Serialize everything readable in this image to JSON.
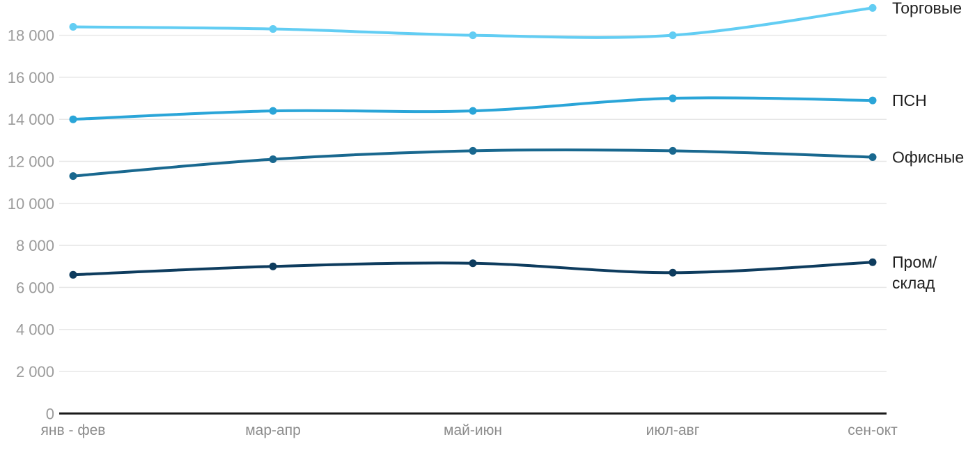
{
  "chart_data": {
    "type": "line",
    "title": "",
    "xlabel": "",
    "ylabel": "",
    "categories": [
      "янв - фев",
      "мар-апр",
      "май-июн",
      "июл-авг",
      "сен-окт"
    ],
    "series": [
      {
        "name": "Торговые",
        "label_lines": [
          "Торговые"
        ],
        "color": "#62cdf3",
        "values": [
          18400,
          18300,
          18000,
          18000,
          19300
        ]
      },
      {
        "name": "ПСН",
        "label_lines": [
          "ПСН"
        ],
        "color": "#2aa5d8",
        "values": [
          14000,
          14400,
          14400,
          15000,
          14900
        ]
      },
      {
        "name": "Офисные",
        "label_lines": [
          "Офисные"
        ],
        "color": "#19688f",
        "values": [
          11300,
          12100,
          12500,
          12500,
          12200
        ]
      },
      {
        "name": "Пром/склад",
        "label_lines": [
          "Пром/",
          "склад"
        ],
        "color": "#0e3c5e",
        "values": [
          6600,
          7000,
          7150,
          6700,
          7200
        ]
      }
    ],
    "y_axis": {
      "min": 0,
      "max": 18000,
      "tick_step": 2000,
      "ticks": [
        {
          "value": 0,
          "label": "0"
        },
        {
          "value": 2000,
          "label": "2 000"
        },
        {
          "value": 4000,
          "label": "4 000"
        },
        {
          "value": 6000,
          "label": "6 000"
        },
        {
          "value": 8000,
          "label": "8 000"
        },
        {
          "value": 10000,
          "label": "10 000"
        },
        {
          "value": 12000,
          "label": "12 000"
        },
        {
          "value": 14000,
          "label": "14 000"
        },
        {
          "value": 16000,
          "label": "16 000"
        },
        {
          "value": 18000,
          "label": "18 000"
        }
      ]
    },
    "grid": true,
    "legend_position": "right-of-line-ends",
    "line_style": "smooth",
    "markers": "circle"
  },
  "styles": {
    "background": "#ffffff",
    "grid_color": "#e7e7e7",
    "axis_color": "#1a1a1a",
    "y_tick_color": "#9b9b9b",
    "x_tick_color": "#8c8c8c",
    "legend_text_color": "#1f1f1f"
  }
}
